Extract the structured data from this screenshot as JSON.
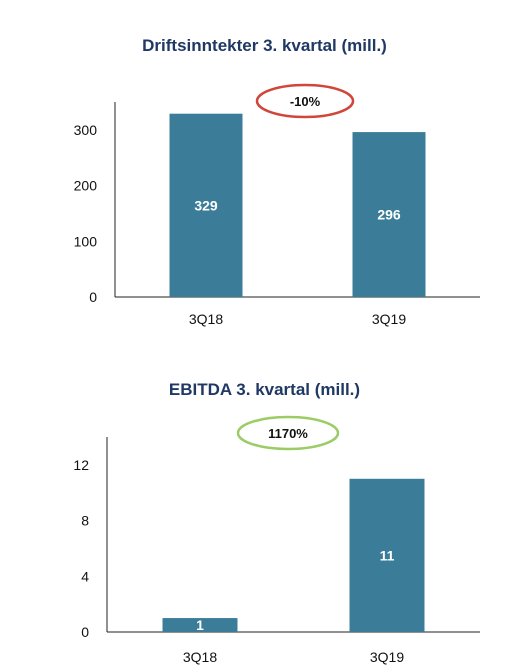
{
  "colors": {
    "bar": "#3b7d98",
    "title": "#1f3864",
    "badge_negative": "#d0473a",
    "badge_positive": "#9ccc65"
  },
  "chart_data": [
    {
      "type": "bar",
      "title": "Driftsinntekter 3. kvartal (mill.)",
      "categories": [
        "3Q18",
        "3Q19"
      ],
      "values": [
        329,
        296
      ],
      "data_labels": [
        "329",
        "296"
      ],
      "ylim": [
        0,
        350
      ],
      "yticks": [
        "0",
        "100",
        "200",
        "300"
      ],
      "badge": {
        "text": "-10%",
        "color": "#d0473a"
      },
      "grid": false
    },
    {
      "type": "bar",
      "title": "EBITDA 3. kvartal (mill.)",
      "categories": [
        "3Q18",
        "3Q19"
      ],
      "values": [
        1,
        11
      ],
      "data_labels": [
        "1",
        "11"
      ],
      "ylim": [
        0,
        14
      ],
      "yticks": [
        "0",
        "4",
        "8",
        "12"
      ],
      "badge": {
        "text": "1170%",
        "color": "#9ccc65"
      },
      "grid": false
    }
  ]
}
